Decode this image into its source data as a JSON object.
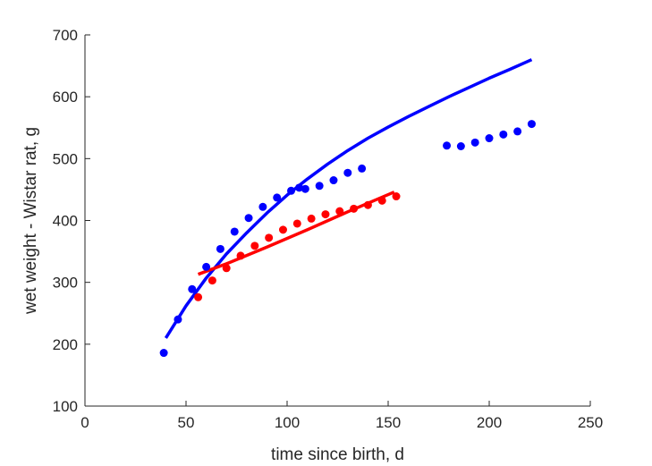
{
  "chart_data": {
    "type": "scatter",
    "xlabel": "time since birth, d",
    "ylabel": "wet weight - Wistar rat, g",
    "xlim": [
      0,
      250
    ],
    "ylim": [
      100,
      700
    ],
    "xticks": [
      0,
      50,
      100,
      150,
      200,
      250
    ],
    "yticks": [
      100,
      200,
      300,
      400,
      500,
      600,
      700
    ],
    "grid": false,
    "series": [
      {
        "kind": "points",
        "color": "#0000ff",
        "x": [
          39,
          46,
          53,
          60,
          67,
          74,
          81,
          88,
          95,
          102,
          106,
          109,
          116,
          123,
          130,
          137,
          179,
          186,
          193,
          200,
          207,
          214,
          221
        ],
        "y": [
          186,
          240,
          289,
          325,
          354,
          382,
          404,
          422,
          437,
          448,
          453,
          451,
          456,
          465,
          477,
          484,
          521,
          520,
          526,
          533,
          539,
          544,
          556
        ]
      },
      {
        "kind": "points",
        "color": "#ff0000",
        "x": [
          56,
          63,
          70,
          77,
          84,
          91,
          98,
          105,
          112,
          119,
          126,
          133,
          140,
          147,
          154
        ],
        "y": [
          276,
          303,
          323,
          343,
          359,
          372,
          385,
          395,
          403,
          410,
          415,
          419,
          425,
          432,
          439
        ]
      },
      {
        "kind": "line",
        "color": "#0000ff",
        "x": [
          40,
          50,
          60,
          70,
          80,
          90,
          100,
          110,
          120,
          130,
          140,
          150,
          160,
          170,
          180,
          190,
          200,
          210,
          221
        ],
        "y": [
          210,
          262,
          307,
          346,
          380,
          412,
          441,
          467,
          491,
          513,
          533,
          551,
          568,
          584,
          600,
          615,
          630,
          644,
          660
        ]
      },
      {
        "kind": "line",
        "color": "#ff0000",
        "x": [
          56,
          70,
          90,
          110,
          130,
          153
        ],
        "y": [
          313,
          330,
          357,
          385,
          414,
          446
        ]
      }
    ]
  }
}
